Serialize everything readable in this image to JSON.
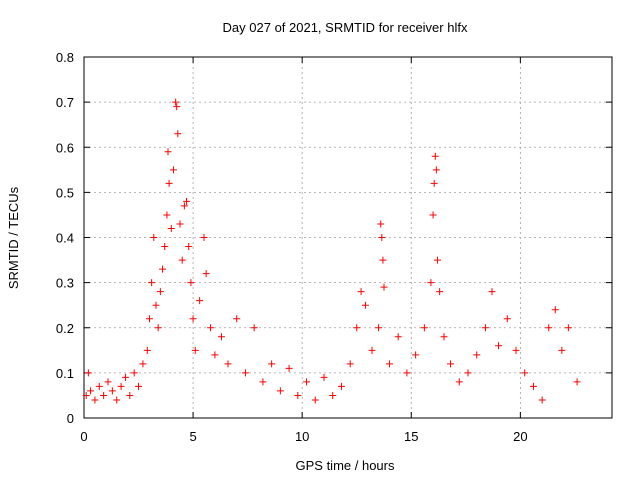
{
  "chart_data": {
    "type": "scatter",
    "title": "Day 027 of 2021, SRMTID for receiver hlfx",
    "xlabel": "GPS time / hours",
    "ylabel": "SRMTID / TECUs",
    "xlim": [
      0,
      24.2
    ],
    "ylim": [
      0,
      0.8
    ],
    "xticks": [
      0,
      5,
      10,
      15,
      20
    ],
    "xtick_labels": [
      "0",
      "5",
      "10",
      "15",
      "20"
    ],
    "yticks": [
      0,
      0.1,
      0.2,
      0.3,
      0.4,
      0.5,
      0.6,
      0.7,
      0.8
    ],
    "ytick_labels": [
      "0",
      "0.1",
      "0.2",
      "0.3",
      "0.4",
      "0.5",
      "0.6",
      "0.7",
      "0.8"
    ],
    "grid": true,
    "marker": "plus",
    "color": "#ff0000",
    "series": [
      {
        "name": "SRMTID",
        "points": [
          [
            0.1,
            0.05
          ],
          [
            0.2,
            0.1
          ],
          [
            0.3,
            0.06
          ],
          [
            0.5,
            0.04
          ],
          [
            0.7,
            0.07
          ],
          [
            0.9,
            0.05
          ],
          [
            1.1,
            0.08
          ],
          [
            1.3,
            0.06
          ],
          [
            1.5,
            0.04
          ],
          [
            1.7,
            0.07
          ],
          [
            1.9,
            0.09
          ],
          [
            2.1,
            0.05
          ],
          [
            2.3,
            0.1
          ],
          [
            2.5,
            0.07
          ],
          [
            2.7,
            0.12
          ],
          [
            2.9,
            0.15
          ],
          [
            3.0,
            0.22
          ],
          [
            3.1,
            0.3
          ],
          [
            3.2,
            0.4
          ],
          [
            3.3,
            0.25
          ],
          [
            3.4,
            0.2
          ],
          [
            3.5,
            0.28
          ],
          [
            3.6,
            0.33
          ],
          [
            3.7,
            0.38
          ],
          [
            3.8,
            0.45
          ],
          [
            3.85,
            0.59
          ],
          [
            3.9,
            0.52
          ],
          [
            4.0,
            0.42
          ],
          [
            4.1,
            0.55
          ],
          [
            4.2,
            0.7
          ],
          [
            4.25,
            0.69
          ],
          [
            4.3,
            0.63
          ],
          [
            4.4,
            0.43
          ],
          [
            4.5,
            0.35
          ],
          [
            4.6,
            0.47
          ],
          [
            4.7,
            0.48
          ],
          [
            4.8,
            0.38
          ],
          [
            4.9,
            0.3
          ],
          [
            5.0,
            0.22
          ],
          [
            5.1,
            0.15
          ],
          [
            5.3,
            0.26
          ],
          [
            5.5,
            0.4
          ],
          [
            5.6,
            0.32
          ],
          [
            5.8,
            0.2
          ],
          [
            6.0,
            0.14
          ],
          [
            6.3,
            0.18
          ],
          [
            6.6,
            0.12
          ],
          [
            7.0,
            0.22
          ],
          [
            7.4,
            0.1
          ],
          [
            7.8,
            0.2
          ],
          [
            8.2,
            0.08
          ],
          [
            8.6,
            0.12
          ],
          [
            9.0,
            0.06
          ],
          [
            9.4,
            0.11
          ],
          [
            9.8,
            0.05
          ],
          [
            10.2,
            0.08
          ],
          [
            10.6,
            0.04
          ],
          [
            11.0,
            0.09
          ],
          [
            11.4,
            0.05
          ],
          [
            11.8,
            0.07
          ],
          [
            12.2,
            0.12
          ],
          [
            12.5,
            0.2
          ],
          [
            12.7,
            0.28
          ],
          [
            12.9,
            0.25
          ],
          [
            13.2,
            0.15
          ],
          [
            13.5,
            0.2
          ],
          [
            13.6,
            0.43
          ],
          [
            13.65,
            0.4
          ],
          [
            13.7,
            0.35
          ],
          [
            13.75,
            0.29
          ],
          [
            14.0,
            0.12
          ],
          [
            14.4,
            0.18
          ],
          [
            14.8,
            0.1
          ],
          [
            15.2,
            0.14
          ],
          [
            15.6,
            0.2
          ],
          [
            15.9,
            0.3
          ],
          [
            16.0,
            0.45
          ],
          [
            16.05,
            0.52
          ],
          [
            16.1,
            0.58
          ],
          [
            16.15,
            0.55
          ],
          [
            16.2,
            0.35
          ],
          [
            16.3,
            0.28
          ],
          [
            16.5,
            0.18
          ],
          [
            16.8,
            0.12
          ],
          [
            17.2,
            0.08
          ],
          [
            17.6,
            0.1
          ],
          [
            18.0,
            0.14
          ],
          [
            18.4,
            0.2
          ],
          [
            18.7,
            0.28
          ],
          [
            19.0,
            0.16
          ],
          [
            19.4,
            0.22
          ],
          [
            19.8,
            0.15
          ],
          [
            20.2,
            0.1
          ],
          [
            20.6,
            0.07
          ],
          [
            21.0,
            0.04
          ],
          [
            21.3,
            0.2
          ],
          [
            21.6,
            0.24
          ],
          [
            21.9,
            0.15
          ],
          [
            22.2,
            0.2
          ],
          [
            22.6,
            0.08
          ]
        ]
      }
    ]
  }
}
